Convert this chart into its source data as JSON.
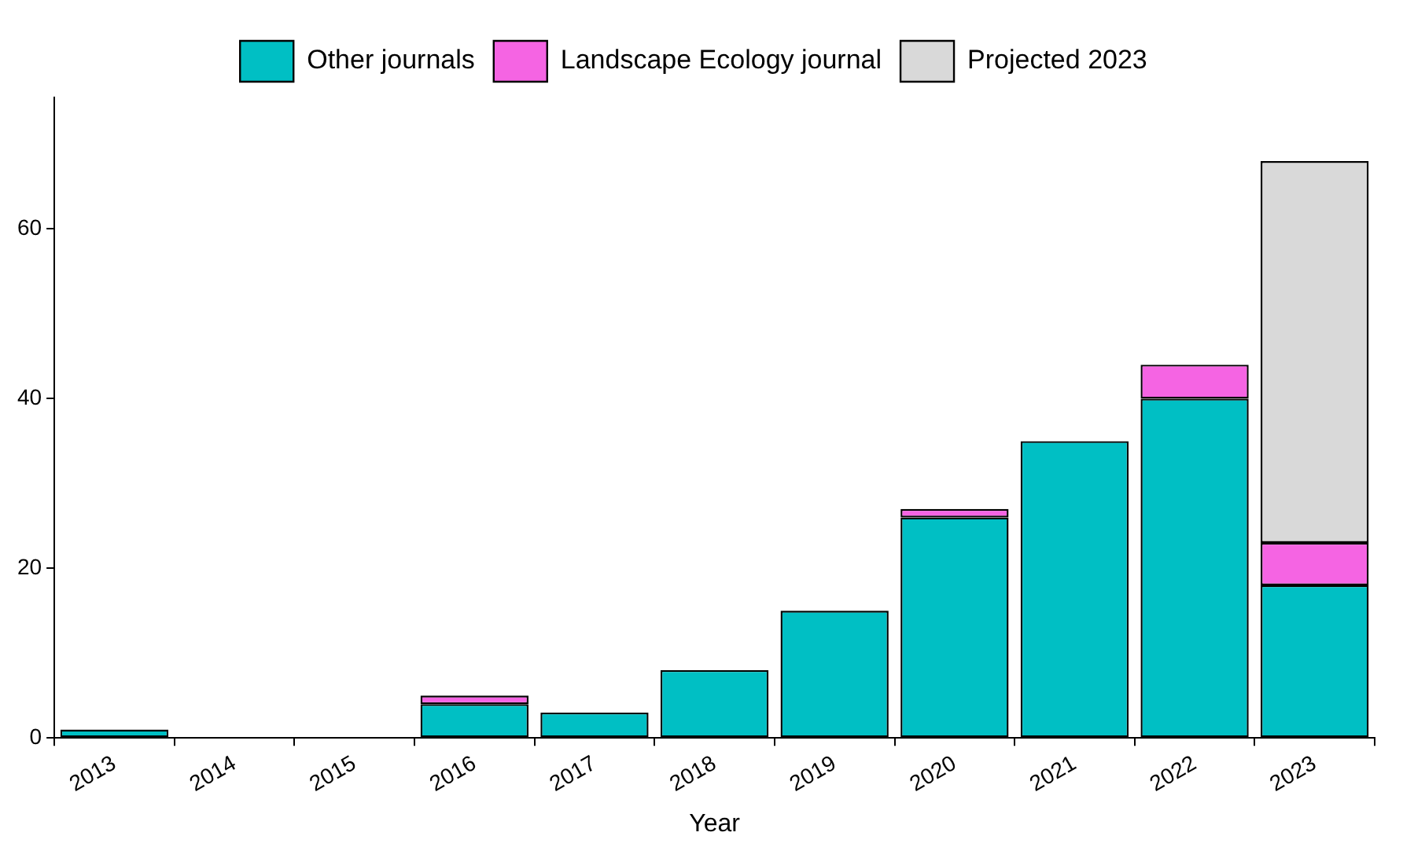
{
  "chart_data": {
    "type": "bar",
    "stacked": true,
    "xlabel": "Year",
    "categories": [
      "2013",
      "2014",
      "2015",
      "2016",
      "2017",
      "2018",
      "2019",
      "2020",
      "2021",
      "2022",
      "2023"
    ],
    "series": [
      {
        "name": "Other journals",
        "color": "#00bfc4",
        "values": [
          1,
          0,
          0,
          4,
          3,
          8,
          15,
          26,
          35,
          40,
          18
        ]
      },
      {
        "name": "Landscape Ecology journal",
        "color": "#f564e3",
        "values": [
          0,
          0,
          0,
          1,
          0,
          0,
          0,
          1,
          0,
          4,
          5
        ]
      },
      {
        "name": "Projected 2023",
        "color": "#d9d9d9",
        "values": [
          0,
          0,
          0,
          0,
          0,
          0,
          0,
          0,
          0,
          0,
          45
        ]
      }
    ],
    "ylim": [
      0,
      75.5
    ],
    "yticks": [
      0,
      20,
      40,
      60
    ],
    "grid": false,
    "legend": "top"
  }
}
